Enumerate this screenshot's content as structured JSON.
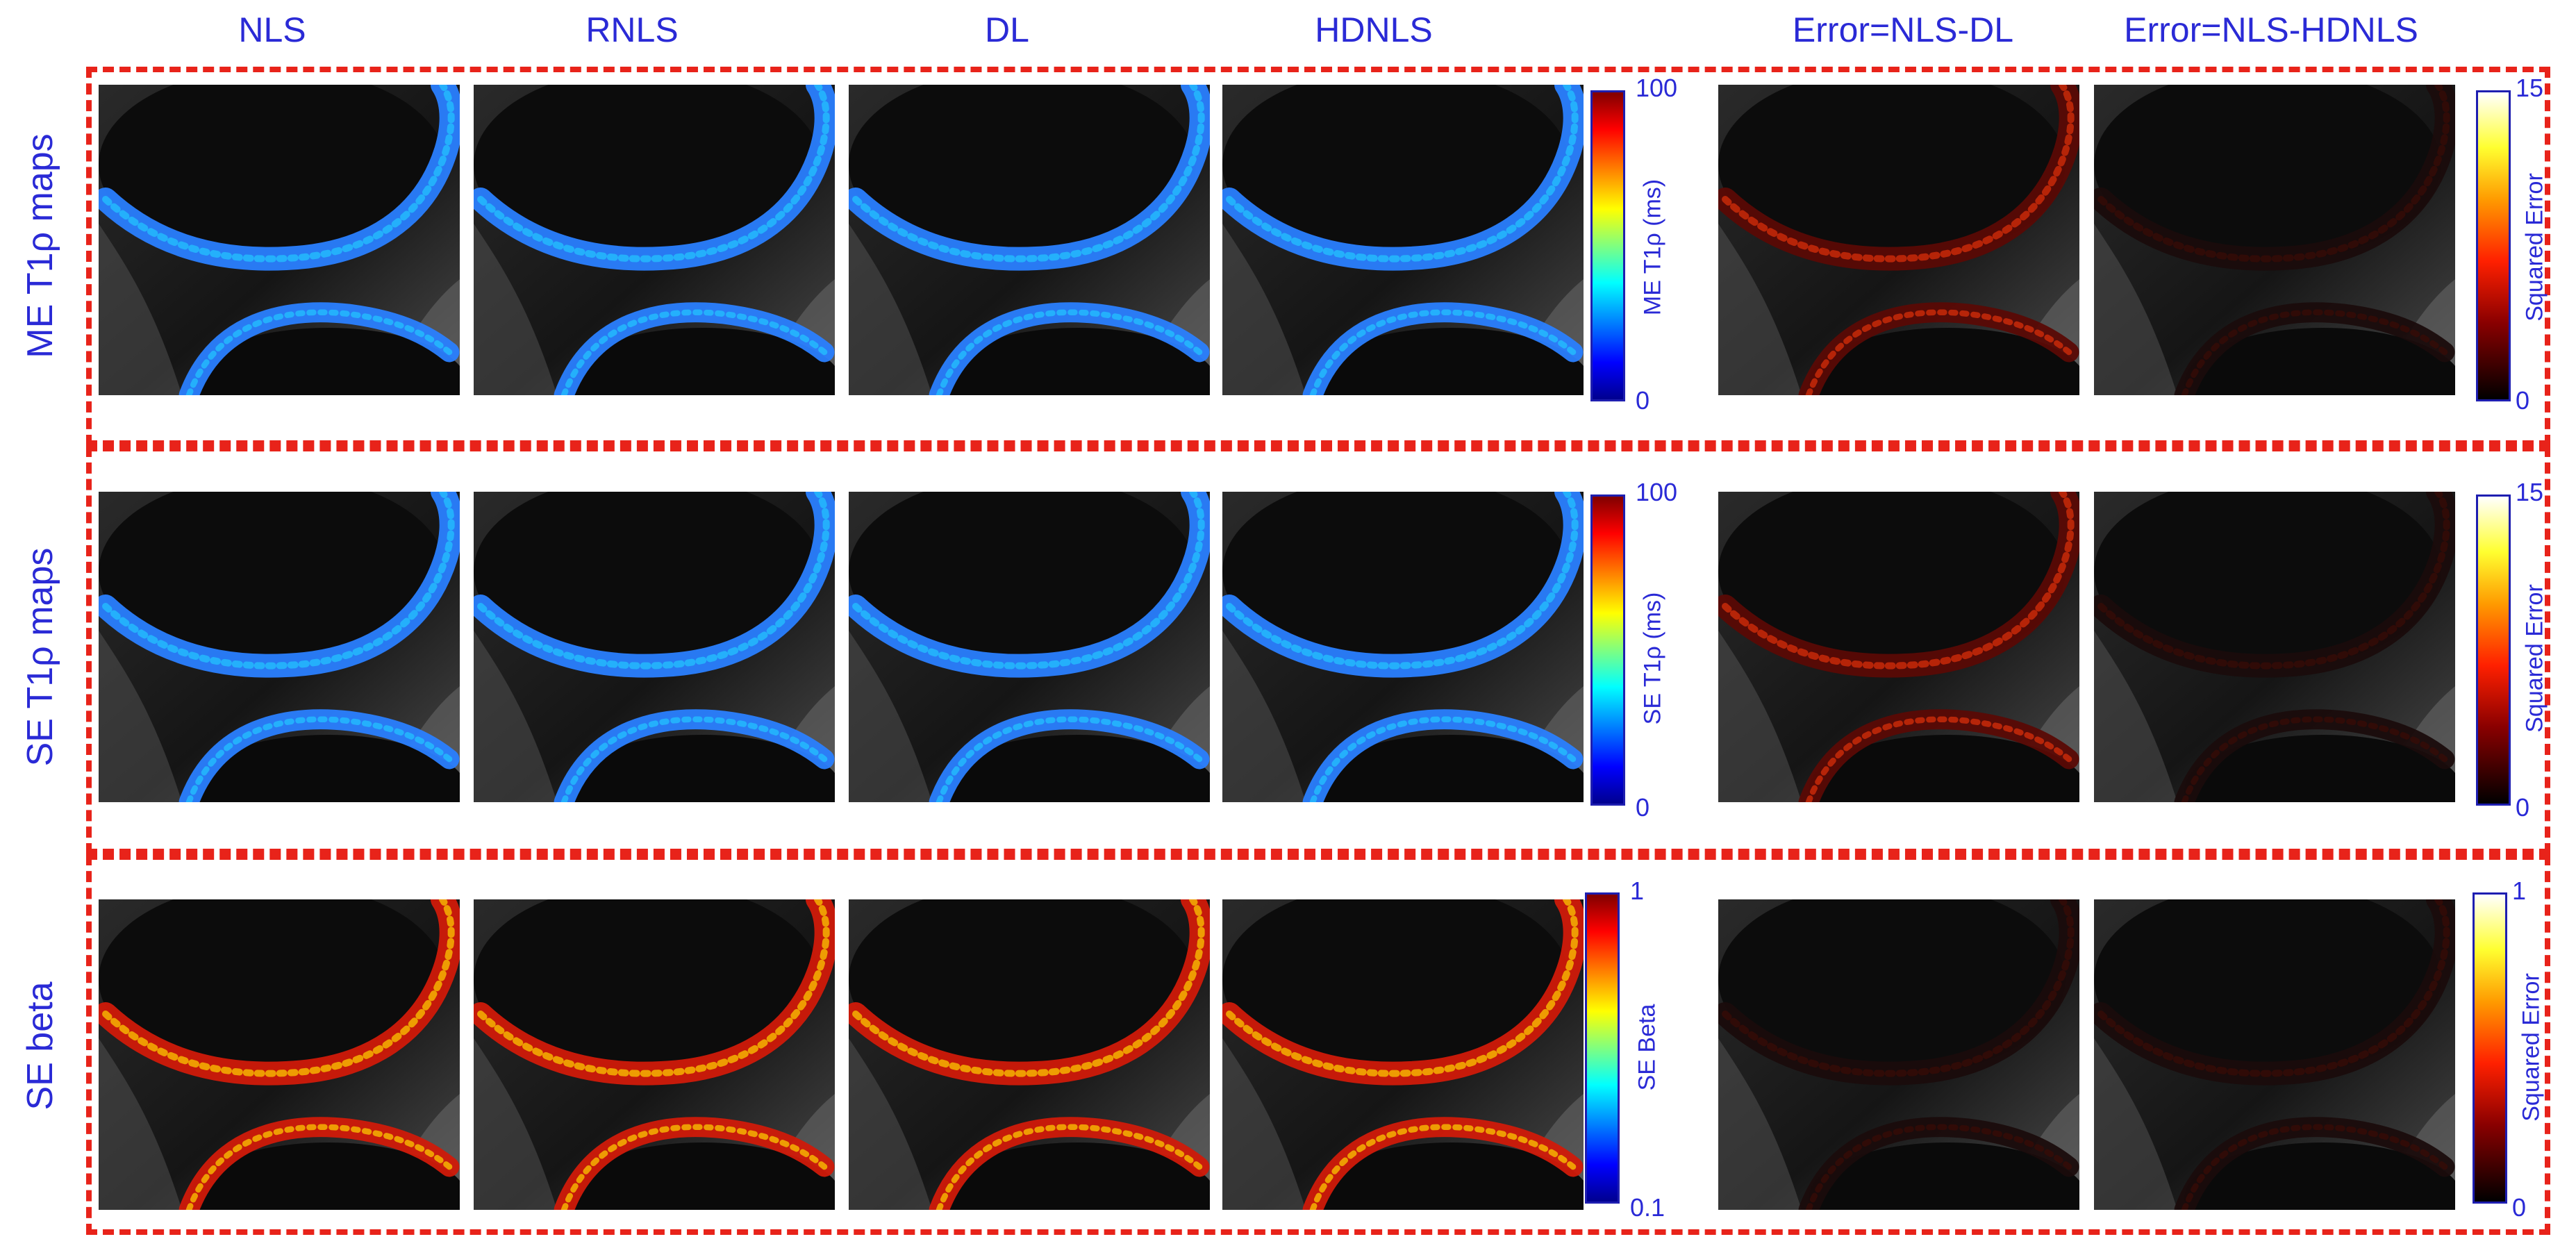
{
  "column_titles": {
    "nls": "NLS",
    "rnls": "RNLS",
    "dl": "DL",
    "hdnls": "HDNLS",
    "err_dl": "Error=NLS-DL",
    "err_hdnls": "Error=NLS-HDNLS"
  },
  "rows": [
    {
      "label": "ME  T1ρ maps",
      "colorbar_label": "ME T1ρ (ms)",
      "colorbar_max": "100",
      "colorbar_min": "0",
      "error_label": "Squared Error",
      "error_max": "15",
      "error_min": "0"
    },
    {
      "label": "SE  T1ρ maps",
      "colorbar_label": "SE T1ρ (ms)",
      "colorbar_max": "100",
      "colorbar_min": "0",
      "error_label": "Squared Error",
      "error_max": "15",
      "error_min": "0"
    },
    {
      "label": "SE beta",
      "colorbar_label": "SE Beta",
      "colorbar_max": "1",
      "colorbar_min": "0.1",
      "error_label": "Squared Error",
      "error_max": "1",
      "error_min": "0"
    }
  ],
  "colors": {
    "title_text": "#2a2ad6",
    "dashed_box": "#e8231a"
  },
  "colormaps": {
    "jet": "jet",
    "hot": "hot"
  }
}
